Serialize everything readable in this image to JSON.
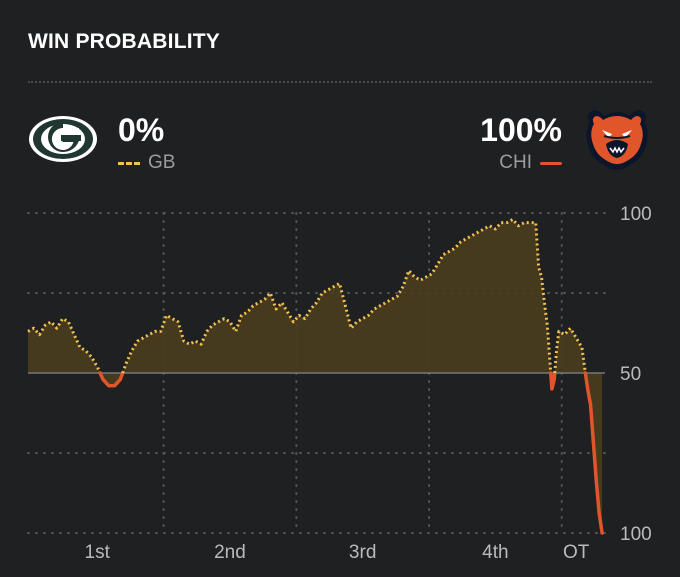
{
  "header": {
    "title": "WIN PROBABILITY"
  },
  "teams": {
    "left": {
      "abbr": "GB",
      "pct": "0%",
      "color": "#f2c14e",
      "logo": "packers-g-logo-icon"
    },
    "right": {
      "abbr": "CHI",
      "pct": "100%",
      "color": "#e0562a",
      "logo": "bears-head-logo-icon"
    }
  },
  "chart_data": {
    "type": "line",
    "ylim": [
      0,
      100
    ],
    "xlim": [
      0,
      100
    ],
    "y_tick_labels": [
      {
        "value": 100,
        "label": "100"
      },
      {
        "value": 50,
        "label": "50"
      },
      {
        "value": 0,
        "label": "100"
      }
    ],
    "x_tick_labels": [
      {
        "value": 12,
        "label": "1st"
      },
      {
        "value": 35,
        "label": "2nd"
      },
      {
        "value": 58,
        "label": "3rd"
      },
      {
        "value": 81,
        "label": "4th"
      },
      {
        "value": 95,
        "label": "OT"
      }
    ],
    "grid": true,
    "baseline": 50,
    "colors": {
      "above": "#f2c14e",
      "below": "#e0562a",
      "fill": "#4a3d1e"
    },
    "series": [
      {
        "points": [
          [
            0,
            63
          ],
          [
            1,
            64
          ],
          [
            2,
            62
          ],
          [
            3,
            65
          ],
          [
            4,
            66
          ],
          [
            5,
            64
          ],
          [
            6,
            67
          ],
          [
            7,
            66
          ],
          [
            8,
            62
          ],
          [
            9,
            58
          ],
          [
            10,
            57
          ],
          [
            11,
            55
          ],
          [
            12,
            52
          ],
          [
            13,
            48
          ],
          [
            14,
            46
          ],
          [
            15,
            46
          ],
          [
            16,
            48
          ],
          [
            17,
            53
          ],
          [
            18,
            57
          ],
          [
            19,
            60
          ],
          [
            20,
            61
          ],
          [
            21,
            62
          ],
          [
            22,
            63
          ],
          [
            23,
            63
          ],
          [
            24,
            68
          ],
          [
            25,
            67
          ],
          [
            26,
            66
          ],
          [
            27,
            60
          ],
          [
            28,
            59
          ],
          [
            29,
            60
          ],
          [
            30,
            59
          ],
          [
            31,
            63
          ],
          [
            32,
            65
          ],
          [
            33,
            66
          ],
          [
            34,
            67
          ],
          [
            35,
            66
          ],
          [
            36,
            63
          ],
          [
            37,
            68
          ],
          [
            38,
            69
          ],
          [
            39,
            71
          ],
          [
            40,
            72
          ],
          [
            41,
            73
          ],
          [
            42,
            75
          ],
          [
            43,
            70
          ],
          [
            44,
            72
          ],
          [
            45,
            69
          ],
          [
            46,
            66
          ],
          [
            47,
            68
          ],
          [
            48,
            67
          ],
          [
            49,
            70
          ],
          [
            50,
            72
          ],
          [
            51,
            75
          ],
          [
            52,
            76
          ],
          [
            53,
            77
          ],
          [
            54,
            78
          ],
          [
            55,
            71
          ],
          [
            56,
            64
          ],
          [
            57,
            66
          ],
          [
            58,
            67
          ],
          [
            59,
            68
          ],
          [
            60,
            70
          ],
          [
            61,
            71
          ],
          [
            62,
            72
          ],
          [
            63,
            73
          ],
          [
            64,
            74
          ],
          [
            65,
            77
          ],
          [
            66,
            82
          ],
          [
            67,
            80
          ],
          [
            68,
            79
          ],
          [
            69,
            80
          ],
          [
            70,
            81
          ],
          [
            71,
            84
          ],
          [
            72,
            87
          ],
          [
            73,
            88
          ],
          [
            74,
            89
          ],
          [
            75,
            91
          ],
          [
            76,
            92
          ],
          [
            77,
            93
          ],
          [
            78,
            94
          ],
          [
            79,
            95
          ],
          [
            80,
            96
          ],
          [
            81,
            95
          ],
          [
            82,
            97
          ],
          [
            83,
            97
          ],
          [
            84,
            98
          ],
          [
            85,
            96
          ],
          [
            86,
            97
          ],
          [
            87,
            97
          ],
          [
            88,
            97
          ],
          [
            88.5,
            83
          ],
          [
            89,
            80
          ],
          [
            89.5,
            72
          ],
          [
            90,
            65
          ],
          [
            90.4,
            55
          ],
          [
            90.8,
            45
          ],
          [
            91.2,
            48
          ],
          [
            91.6,
            57
          ],
          [
            92,
            63
          ],
          [
            93,
            62
          ],
          [
            94,
            64
          ],
          [
            95,
            61
          ],
          [
            96,
            58
          ],
          [
            96.6,
            50
          ],
          [
            97,
            45
          ],
          [
            97.5,
            40
          ],
          [
            98,
            28
          ],
          [
            98.5,
            16
          ],
          [
            99,
            6
          ],
          [
            99.5,
            0
          ]
        ]
      }
    ]
  }
}
